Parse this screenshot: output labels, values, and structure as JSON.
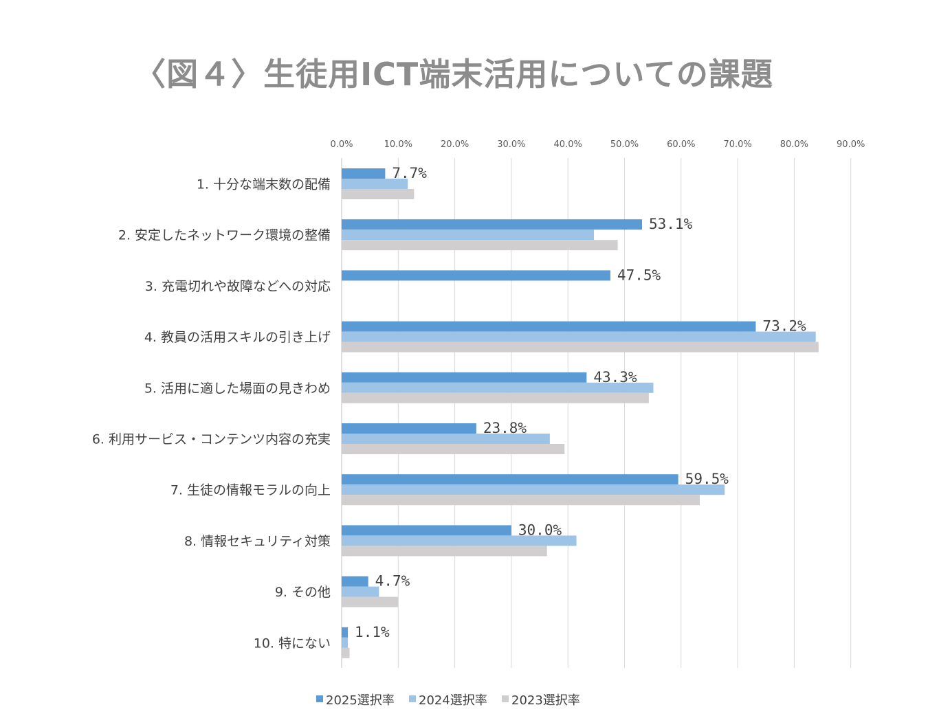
{
  "title": "〈図４〉生徒用ICT端末活用についての課題",
  "chart_data": {
    "type": "bar",
    "orientation": "horizontal",
    "title": "〈図４〉生徒用ICT端末活用についての課題",
    "xlim": [
      0,
      90
    ],
    "x_ticks": [
      "0.0%",
      "10.0%",
      "20.0%",
      "30.0%",
      "40.0%",
      "50.0%",
      "60.0%",
      "70.0%",
      "80.0%",
      "90.0%"
    ],
    "x_tick_values": [
      0,
      10,
      20,
      30,
      40,
      50,
      60,
      70,
      80,
      90
    ],
    "grid": true,
    "legend_position": "bottom",
    "categories": [
      "1.  十分な端末数の配備",
      "2.  安定したネットワーク環境の整備",
      "3.  充電切れや故障などへの対応",
      "4.  教員の活用スキルの引き上げ",
      "5.  活用に適した場面の見きわめ",
      "6.  利用サービス・コンテンツ内容の充実",
      "7.  生徒の情報モラルの向上",
      "8.  情報セキュリティ対策",
      "9.  その他",
      "10.  特にない"
    ],
    "series": [
      {
        "name": "2025選択率",
        "color": "#5b9bd5",
        "values": [
          7.7,
          53.1,
          47.5,
          73.2,
          43.3,
          23.8,
          59.5,
          30.0,
          4.7,
          1.1
        ],
        "labels": [
          "7.7%",
          "53.1%",
          "47.5%",
          "73.2%",
          "43.3%",
          "23.8%",
          "59.5%",
          "30.0%",
          "4.7%",
          "1.1%"
        ]
      },
      {
        "name": "2024選択率",
        "color": "#9dc3e6",
        "values": [
          11.7,
          44.6,
          null,
          83.8,
          55.1,
          36.8,
          67.7,
          41.5,
          6.6,
          1.1
        ]
      },
      {
        "name": "2023選択率",
        "color": "#d0cece",
        "values": [
          12.8,
          48.8,
          null,
          84.3,
          54.3,
          39.4,
          63.3,
          36.3,
          10.0,
          1.4
        ]
      }
    ]
  }
}
